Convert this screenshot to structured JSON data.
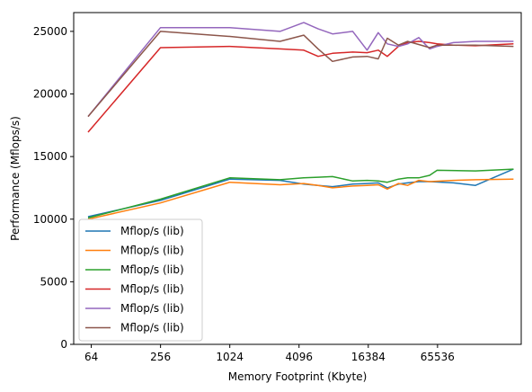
{
  "chart_data": {
    "type": "line",
    "title": "",
    "xlabel": "Memory Footprint (Kbyte)",
    "ylabel": "Performance (Mflops/s)",
    "x_scale": "log2",
    "xlim": [
      45,
      350000
    ],
    "ylim": [
      0,
      26500
    ],
    "xticks": [
      64,
      256,
      1024,
      4096,
      16384,
      65536
    ],
    "xtick_labels": [
      "64",
      "256",
      "1024",
      "4096",
      "16384",
      "65536"
    ],
    "yticks": [
      0,
      5000,
      10000,
      15000,
      20000,
      25000
    ],
    "ytick_labels": [
      "0",
      "5000",
      "10000",
      "15000",
      "20000",
      "25000"
    ],
    "grid": false,
    "legend_position": "lower-left",
    "series": [
      {
        "name": "Mflop/s (lib)",
        "color": "#1f77b4",
        "x": [
          60,
          256,
          1024,
          2800,
          4500,
          6000,
          8000,
          12000,
          16000,
          20000,
          24000,
          30000,
          36000,
          45000,
          56000,
          90000,
          140000,
          300000
        ],
        "y": [
          10200,
          11500,
          13200,
          13100,
          12800,
          12700,
          12600,
          12800,
          12850,
          12900,
          12500,
          12800,
          12900,
          13000,
          13000,
          12900,
          12700,
          14000
        ]
      },
      {
        "name": "Mflop/s (lib)",
        "color": "#ff7f0e",
        "x": [
          60,
          256,
          1024,
          2800,
          4500,
          6000,
          8000,
          12000,
          16000,
          20000,
          24000,
          30000,
          36000,
          45000,
          56000,
          90000,
          140000,
          300000
        ],
        "y": [
          10000,
          11300,
          12950,
          12750,
          12850,
          12700,
          12500,
          12650,
          12700,
          12750,
          12400,
          12850,
          12700,
          13100,
          13000,
          13100,
          13150,
          13200
        ]
      },
      {
        "name": "Mflop/s (lib)",
        "color": "#2ca02c",
        "x": [
          60,
          256,
          1024,
          2800,
          4500,
          6000,
          8000,
          12000,
          16000,
          20000,
          24000,
          30000,
          36000,
          45000,
          56000,
          65000,
          140000,
          300000
        ],
        "y": [
          10100,
          11600,
          13300,
          13150,
          13300,
          13350,
          13400,
          13050,
          13100,
          13050,
          12950,
          13200,
          13300,
          13300,
          13500,
          13900,
          13850,
          14000
        ]
      },
      {
        "name": "Mflop/s (lib)",
        "color": "#d62728",
        "x": [
          60,
          256,
          1024,
          2800,
          4500,
          6000,
          8000,
          12000,
          16000,
          20000,
          24000,
          30000,
          36000,
          45000,
          56000,
          65000,
          90000,
          140000,
          300000
        ],
        "y": [
          16950,
          23700,
          23800,
          23600,
          23500,
          23000,
          23250,
          23350,
          23300,
          23500,
          23000,
          23800,
          24100,
          24200,
          24100,
          24000,
          23900,
          23850,
          24000
        ]
      },
      {
        "name": "Mflop/s (lib)",
        "color": "#9467bd",
        "x": [
          60,
          256,
          1024,
          2800,
          4500,
          6000,
          8000,
          12000,
          16000,
          20000,
          24000,
          30000,
          36000,
          45000,
          56000,
          65000,
          90000,
          140000,
          300000
        ],
        "y": [
          18200,
          25300,
          25300,
          25000,
          25700,
          25200,
          24800,
          25000,
          23500,
          24900,
          24000,
          23800,
          24000,
          24500,
          23600,
          23800,
          24100,
          24200,
          24200
        ]
      },
      {
        "name": "Mflop/s (lib)",
        "color": "#8c564b",
        "x": [
          60,
          256,
          1024,
          2800,
          4500,
          6000,
          8000,
          12000,
          16000,
          20000,
          24000,
          30000,
          36000,
          45000,
          56000,
          65000,
          90000,
          140000,
          300000
        ],
        "y": [
          18200,
          25000,
          24600,
          24200,
          24700,
          23600,
          22600,
          22950,
          23000,
          22800,
          24450,
          23900,
          24200,
          23950,
          23700,
          23900,
          23900,
          23900,
          23800
        ]
      }
    ]
  }
}
